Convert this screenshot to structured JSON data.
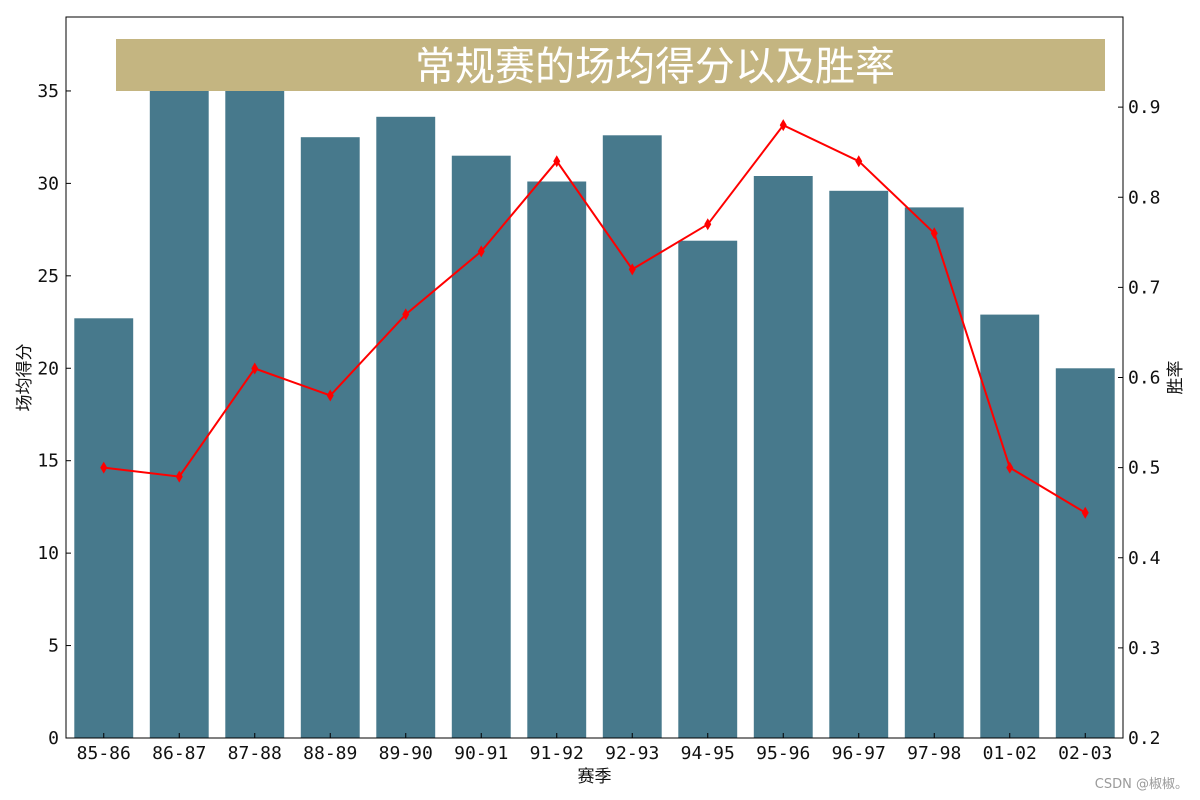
{
  "chart_data": {
    "type": "bar",
    "title": "常规赛的场均得分以及胜率",
    "xlabel": "赛季",
    "ylabel": "场均得分",
    "y2label": "胜率",
    "categories": [
      "85-86",
      "86-87",
      "87-88",
      "88-89",
      "89-90",
      "90-91",
      "91-92",
      "92-93",
      "94-95",
      "95-96",
      "96-97",
      "97-98",
      "01-02",
      "02-03"
    ],
    "series": [
      {
        "type": "bar",
        "axis": "left",
        "values": [
          22.7,
          37.1,
          35.0,
          32.5,
          33.6,
          31.5,
          30.1,
          32.6,
          26.9,
          30.4,
          29.6,
          28.7,
          22.9,
          20.0
        ]
      },
      {
        "type": "line",
        "axis": "right",
        "marker": "diamond",
        "values": [
          0.5,
          0.49,
          0.61,
          0.58,
          0.67,
          0.74,
          0.84,
          0.72,
          0.77,
          0.88,
          0.84,
          0.76,
          0.5,
          0.45
        ]
      }
    ],
    "ylim": [
      0,
      39
    ],
    "y_ticks": [
      0,
      5,
      10,
      15,
      20,
      25,
      30,
      35
    ],
    "y2lim": [
      0.2,
      1.0
    ],
    "y2_ticks": [
      0.2,
      0.3,
      0.4,
      0.5,
      0.6,
      0.7,
      0.8,
      0.9
    ],
    "y2_tick_labels": [
      "0.2",
      "0.3",
      "0.4",
      "0.5",
      "0.6",
      "0.7",
      "0.8",
      "0.9"
    ],
    "grid": false,
    "colors": {
      "bar": "#47798c",
      "line": "#ff0000",
      "title_band": "#c4b581",
      "title_text": "#ffffff"
    }
  },
  "watermark": "CSDN @椒椒。"
}
